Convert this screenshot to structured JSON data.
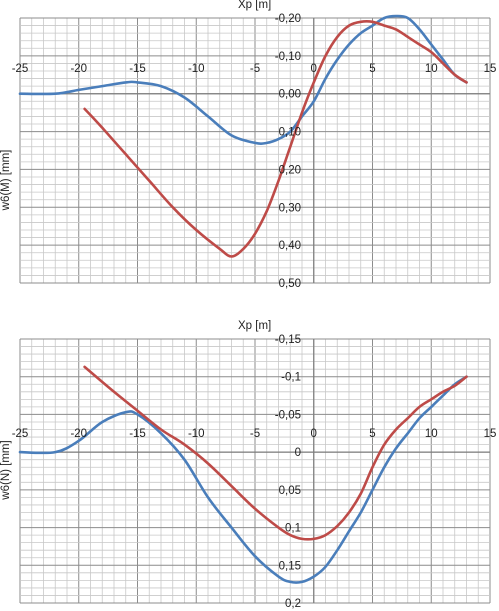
{
  "chart_data": [
    {
      "type": "line",
      "title": "",
      "xlabel": "Xp  [m]",
      "ylabel": "w6(M)  [mm]",
      "x_ticks": [
        "-25",
        "-20",
        "-15",
        "-10",
        "-5",
        "0",
        "5",
        "10",
        "15"
      ],
      "x_tick_values": [
        -25,
        -20,
        -15,
        -10,
        -5,
        0,
        5,
        10,
        15
      ],
      "y_ticks": [
        "-0,20",
        "-0,10",
        "0,00",
        "0,10",
        "0,20",
        "0,30",
        "0,40",
        "0,50"
      ],
      "y_tick_values": [
        -0.2,
        -0.1,
        0.0,
        0.1,
        0.2,
        0.3,
        0.4,
        0.5
      ],
      "xlim": [
        -25,
        15
      ],
      "ylim": [
        -0.2,
        0.5
      ],
      "y_inverted": true,
      "grid": true,
      "series": [
        {
          "color": "#4a7ebb",
          "x": [
            -25,
            -22,
            -20,
            -18,
            -16,
            -15,
            -13,
            -11,
            -9,
            -7,
            -5,
            -4,
            -3,
            -2,
            -1,
            0,
            1,
            2,
            3,
            4,
            5,
            6,
            7,
            8,
            9,
            10,
            11,
            12,
            13
          ],
          "y": [
            0.0,
            0.0,
            -0.01,
            -0.02,
            -0.03,
            -0.03,
            -0.02,
            0.01,
            0.06,
            0.11,
            0.13,
            0.13,
            0.12,
            0.1,
            0.06,
            0.02,
            -0.04,
            -0.09,
            -0.13,
            -0.16,
            -0.18,
            -0.2,
            -0.205,
            -0.2,
            -0.17,
            -0.13,
            -0.09,
            -0.05,
            -0.03
          ]
        },
        {
          "color": "#be4b48",
          "x": [
            -19.5,
            -18,
            -16,
            -14,
            -12,
            -10,
            -8,
            -7,
            -6,
            -5,
            -4,
            -3,
            -2,
            -1,
            0,
            1,
            2,
            3,
            4,
            5,
            6,
            7,
            8,
            9,
            10,
            11,
            12,
            13
          ],
          "y": [
            0.04,
            0.09,
            0.16,
            0.23,
            0.3,
            0.36,
            0.41,
            0.43,
            0.41,
            0.37,
            0.31,
            0.23,
            0.14,
            0.05,
            -0.03,
            -0.1,
            -0.15,
            -0.18,
            -0.19,
            -0.19,
            -0.18,
            -0.17,
            -0.15,
            -0.13,
            -0.11,
            -0.08,
            -0.05,
            -0.03
          ]
        }
      ]
    },
    {
      "type": "line",
      "title": "",
      "xlabel": "Xp  [m]",
      "ylabel": "w6(N)  [mm]",
      "x_ticks": [
        "-25",
        "-20",
        "-15",
        "-10",
        "-5",
        "0",
        "5",
        "10",
        "15"
      ],
      "x_tick_values": [
        -25,
        -20,
        -15,
        -10,
        -5,
        0,
        5,
        10,
        15
      ],
      "y_ticks": [
        "-0,15",
        "-0,1",
        "-0,05",
        "0",
        "0,05",
        "0,1",
        "0,15",
        "0,2"
      ],
      "y_tick_values": [
        -0.15,
        -0.1,
        -0.05,
        0.0,
        0.05,
        0.1,
        0.15,
        0.2
      ],
      "xlim": [
        -25,
        15
      ],
      "ylim": [
        -0.15,
        0.2
      ],
      "y_inverted": true,
      "grid": true,
      "series": [
        {
          "color": "#4a7ebb",
          "x": [
            -25,
            -22,
            -20,
            -18,
            -16,
            -15,
            -13,
            -11,
            -9,
            -7,
            -5,
            -3,
            -2,
            -1,
            0,
            1,
            2,
            3,
            4,
            5,
            6,
            7,
            8,
            9,
            10,
            11,
            12,
            13
          ],
          "y": [
            0.0,
            0.0,
            -0.015,
            -0.04,
            -0.053,
            -0.05,
            -0.025,
            0.01,
            0.06,
            0.1,
            0.138,
            0.165,
            0.172,
            0.172,
            0.165,
            0.152,
            0.13,
            0.105,
            0.08,
            0.05,
            0.02,
            -0.005,
            -0.025,
            -0.045,
            -0.06,
            -0.075,
            -0.09,
            -0.1
          ]
        },
        {
          "color": "#be4b48",
          "x": [
            -19.5,
            -17,
            -15,
            -13,
            -11,
            -9,
            -7,
            -5,
            -3,
            -2,
            -1,
            0,
            1,
            2,
            3,
            4,
            5,
            6,
            7,
            8,
            9,
            10,
            11,
            12,
            13
          ],
          "y": [
            -0.113,
            -0.08,
            -0.055,
            -0.03,
            -0.01,
            0.015,
            0.045,
            0.075,
            0.1,
            0.11,
            0.115,
            0.115,
            0.11,
            0.098,
            0.08,
            0.055,
            0.02,
            -0.01,
            -0.03,
            -0.045,
            -0.06,
            -0.07,
            -0.08,
            -0.088,
            -0.1
          ]
        }
      ]
    }
  ]
}
